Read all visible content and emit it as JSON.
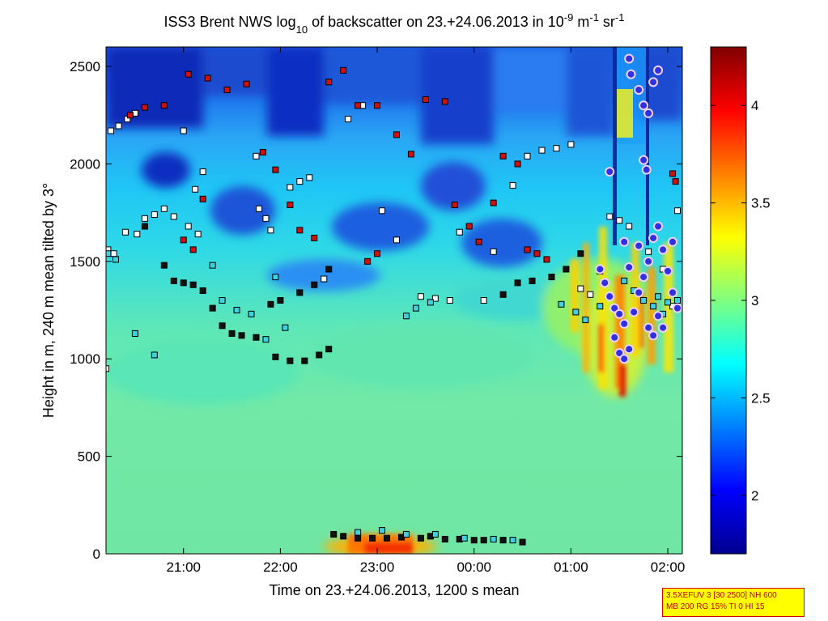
{
  "chart_data": {
    "type": "heatmap",
    "title_parts": [
      "ISS3 Brent NWS log",
      "10",
      " of backscatter on 23.+24.06.2013 in 10",
      "-9",
      " m",
      "-1",
      " sr",
      "-1"
    ],
    "xlabel": "Time on 23.+24.06.2013, 1200 s mean",
    "ylabel": "Height in m, 240 m mean tilted by 3°",
    "x_unit": "hours since 2013-06-23 00:00",
    "xlim": [
      20.2,
      26.15
    ],
    "x_ticks": [
      {
        "value": 21,
        "label": "21:00"
      },
      {
        "value": 22,
        "label": "22:00"
      },
      {
        "value": 23,
        "label": "23:00"
      },
      {
        "value": 24,
        "label": "00:00"
      },
      {
        "value": 25,
        "label": "01:00"
      },
      {
        "value": 26,
        "label": "02:00"
      }
    ],
    "ylim": [
      0,
      2600
    ],
    "y_ticks": [
      0,
      500,
      1000,
      1500,
      2000,
      2500
    ],
    "colorbar": {
      "range": [
        1.7,
        4.3
      ],
      "ticks": [
        {
          "value": 2,
          "label": "2"
        },
        {
          "value": 2.5,
          "label": "2.5"
        },
        {
          "value": 3,
          "label": "3"
        },
        {
          "value": 3.5,
          "label": "3.5"
        },
        {
          "value": 4,
          "label": "4"
        }
      ],
      "colormap": "jet"
    },
    "series": [
      {
        "marker": "square-white",
        "points": [
          [
            20.25,
            2170
          ],
          [
            20.33,
            2195
          ],
          [
            20.42,
            2230
          ],
          [
            20.5,
            2260
          ],
          [
            20.22,
            1560
          ],
          [
            20.28,
            1540
          ],
          [
            20.4,
            1650
          ],
          [
            20.52,
            1640
          ],
          [
            20.6,
            1720
          ],
          [
            20.7,
            1740
          ],
          [
            20.8,
            1770
          ],
          [
            20.9,
            1730
          ],
          [
            21.05,
            1680
          ],
          [
            21.15,
            1640
          ],
          [
            21.0,
            2170
          ],
          [
            21.12,
            1870
          ],
          [
            21.2,
            1960
          ],
          [
            21.75,
            2040
          ],
          [
            21.78,
            1770
          ],
          [
            21.85,
            1720
          ],
          [
            21.9,
            1660
          ],
          [
            22.1,
            1880
          ],
          [
            22.2,
            1910
          ],
          [
            22.3,
            1930
          ],
          [
            22.45,
            1410
          ],
          [
            22.7,
            2230
          ],
          [
            22.85,
            2300
          ],
          [
            23.05,
            1760
          ],
          [
            23.2,
            1610
          ],
          [
            23.45,
            1320
          ],
          [
            23.6,
            1310
          ],
          [
            23.75,
            1300
          ],
          [
            23.85,
            1650
          ],
          [
            24.1,
            1300
          ],
          [
            24.2,
            1550
          ],
          [
            24.4,
            1890
          ],
          [
            24.55,
            2040
          ],
          [
            24.7,
            2070
          ],
          [
            24.85,
            2080
          ],
          [
            25.0,
            2100
          ],
          [
            25.1,
            1360
          ],
          [
            25.2,
            1330
          ],
          [
            25.3,
            1450
          ],
          [
            25.4,
            1730
          ],
          [
            25.5,
            1710
          ],
          [
            25.6,
            1680
          ],
          [
            25.8,
            1550
          ],
          [
            25.95,
            1460
          ],
          [
            26.1,
            1760
          ],
          [
            26.05,
            1270
          ],
          [
            20.2,
            950
          ]
        ]
      },
      {
        "marker": "square-black",
        "points": [
          [
            20.6,
            1680
          ],
          [
            20.8,
            1480
          ],
          [
            20.9,
            1400
          ],
          [
            21.0,
            1390
          ],
          [
            21.1,
            1380
          ],
          [
            21.2,
            1350
          ],
          [
            21.3,
            1260
          ],
          [
            21.4,
            1170
          ],
          [
            21.5,
            1130
          ],
          [
            21.6,
            1120
          ],
          [
            21.75,
            1110
          ],
          [
            21.95,
            1010
          ],
          [
            22.1,
            990
          ],
          [
            22.25,
            990
          ],
          [
            22.4,
            1020
          ],
          [
            22.5,
            1050
          ],
          [
            22.55,
            100
          ],
          [
            22.65,
            90
          ],
          [
            22.8,
            80
          ],
          [
            22.95,
            80
          ],
          [
            23.1,
            80
          ],
          [
            23.25,
            85
          ],
          [
            23.45,
            80
          ],
          [
            23.55,
            90
          ],
          [
            23.7,
            75
          ],
          [
            23.85,
            75
          ],
          [
            24.0,
            70
          ],
          [
            24.1,
            70
          ],
          [
            24.3,
            70
          ],
          [
            24.5,
            60
          ],
          [
            24.3,
            1330
          ],
          [
            24.45,
            1390
          ],
          [
            24.6,
            1400
          ],
          [
            24.8,
            1420
          ],
          [
            24.95,
            1460
          ],
          [
            25.1,
            1540
          ],
          [
            22.5,
            1460
          ],
          [
            22.35,
            1380
          ],
          [
            22.2,
            1340
          ],
          [
            22.0,
            1300
          ],
          [
            21.9,
            1280
          ]
        ]
      },
      {
        "marker": "square-red",
        "points": [
          [
            20.45,
            2250
          ],
          [
            20.6,
            2290
          ],
          [
            20.8,
            2300
          ],
          [
            21.05,
            2460
          ],
          [
            21.25,
            2440
          ],
          [
            21.45,
            2380
          ],
          [
            21.65,
            2410
          ],
          [
            21.82,
            2060
          ],
          [
            21.95,
            1970
          ],
          [
            22.1,
            1790
          ],
          [
            22.2,
            1660
          ],
          [
            22.35,
            1620
          ],
          [
            22.5,
            2420
          ],
          [
            22.65,
            2480
          ],
          [
            22.8,
            2300
          ],
          [
            23.0,
            2300
          ],
          [
            23.2,
            2150
          ],
          [
            23.35,
            2050
          ],
          [
            23.5,
            2330
          ],
          [
            23.7,
            2320
          ],
          [
            23.8,
            1790
          ],
          [
            23.95,
            1680
          ],
          [
            24.05,
            1600
          ],
          [
            24.2,
            1800
          ],
          [
            24.3,
            2040
          ],
          [
            24.45,
            2000
          ],
          [
            24.55,
            1560
          ],
          [
            24.65,
            1540
          ],
          [
            24.75,
            1510
          ],
          [
            21.2,
            1820
          ],
          [
            21.1,
            1560
          ],
          [
            21.0,
            1610
          ],
          [
            22.9,
            1500
          ],
          [
            23.0,
            1540
          ],
          [
            26.05,
            1950
          ],
          [
            26.08,
            1910
          ]
        ]
      },
      {
        "marker": "square-cyan",
        "points": [
          [
            20.22,
            1540
          ],
          [
            20.3,
            1510
          ],
          [
            20.5,
            1130
          ],
          [
            20.7,
            1020
          ],
          [
            21.3,
            1480
          ],
          [
            21.4,
            1300
          ],
          [
            21.55,
            1250
          ],
          [
            21.7,
            1230
          ],
          [
            21.85,
            1100
          ],
          [
            21.95,
            1420
          ],
          [
            22.05,
            1160
          ],
          [
            23.3,
            1220
          ],
          [
            23.4,
            1260
          ],
          [
            23.55,
            1290
          ],
          [
            24.9,
            1280
          ],
          [
            25.05,
            1240
          ],
          [
            25.15,
            1200
          ],
          [
            25.3,
            1270
          ],
          [
            25.4,
            1320
          ],
          [
            25.55,
            1400
          ],
          [
            25.65,
            1350
          ],
          [
            25.75,
            1300
          ],
          [
            25.85,
            1270
          ],
          [
            25.9,
            1320
          ],
          [
            25.95,
            1230
          ],
          [
            26.0,
            1290
          ],
          [
            26.1,
            1300
          ],
          [
            22.8,
            110
          ],
          [
            23.05,
            120
          ],
          [
            23.3,
            100
          ],
          [
            23.6,
            100
          ],
          [
            23.9,
            80
          ],
          [
            24.2,
            75
          ],
          [
            24.4,
            70
          ]
        ]
      },
      {
        "marker": "circle-blue",
        "points": [
          [
            25.4,
            1960
          ],
          [
            25.6,
            2540
          ],
          [
            25.62,
            2460
          ],
          [
            25.7,
            2380
          ],
          [
            25.75,
            2300
          ],
          [
            25.8,
            2260
          ],
          [
            25.85,
            2420
          ],
          [
            25.9,
            2480
          ],
          [
            25.75,
            2020
          ],
          [
            25.78,
            1970
          ],
          [
            25.3,
            1460
          ],
          [
            25.35,
            1390
          ],
          [
            25.4,
            1320
          ],
          [
            25.45,
            1260
          ],
          [
            25.5,
            1230
          ],
          [
            25.55,
            1180
          ],
          [
            25.45,
            1110
          ],
          [
            25.5,
            1030
          ],
          [
            25.55,
            1000
          ],
          [
            25.6,
            1050
          ],
          [
            25.65,
            1240
          ],
          [
            25.7,
            1340
          ],
          [
            25.75,
            1420
          ],
          [
            25.8,
            1500
          ],
          [
            25.85,
            1620
          ],
          [
            25.9,
            1680
          ],
          [
            25.95,
            1560
          ],
          [
            26.0,
            1450
          ],
          [
            26.05,
            1340
          ],
          [
            26.1,
            1260
          ],
          [
            25.95,
            1160
          ],
          [
            25.9,
            1220
          ],
          [
            25.55,
            1600
          ],
          [
            25.6,
            1470
          ],
          [
            25.7,
            1580
          ],
          [
            25.8,
            1160
          ],
          [
            25.85,
            1120
          ],
          [
            26.05,
            1600
          ]
        ]
      }
    ]
  },
  "info_box": {
    "line1": "3.5XEFUV 3 [30 2500] NH 600",
    "line2": "MB 200 RG 15% TI 0 HI 15"
  },
  "colors": {
    "marker_red": "#d01010",
    "marker_circle": "#3030e0",
    "marker_circle_outline": "#f0d0ff",
    "marker_cyan": "#40d0e0",
    "info_bg": "#ffff00",
    "info_border": "#d40000"
  }
}
